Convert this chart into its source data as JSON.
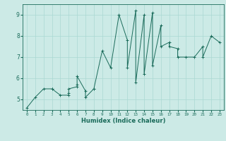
{
  "title": "",
  "xlabel": "Humidex (Indice chaleur)",
  "xlim": [
    -0.5,
    23.5
  ],
  "ylim": [
    4.5,
    9.5
  ],
  "xticks": [
    0,
    1,
    2,
    3,
    4,
    5,
    6,
    7,
    8,
    9,
    10,
    11,
    12,
    13,
    14,
    15,
    16,
    17,
    18,
    19,
    20,
    21,
    22,
    23
  ],
  "yticks": [
    5,
    6,
    7,
    8,
    9
  ],
  "bg_color": "#cceae6",
  "line_color": "#1a6b5a",
  "grid_color": "#aad8d3",
  "x": [
    0,
    1,
    2,
    3,
    3,
    4,
    5,
    5,
    5,
    6,
    6,
    6,
    7,
    7,
    8,
    8,
    9,
    10,
    11,
    12,
    12,
    13,
    13,
    14,
    14,
    15,
    15,
    16,
    16,
    17,
    17,
    18,
    18,
    19,
    20,
    21,
    21,
    22,
    23
  ],
  "y": [
    4.6,
    5.1,
    5.5,
    5.5,
    5.5,
    5.2,
    5.2,
    5.3,
    5.5,
    5.6,
    5.7,
    6.1,
    5.4,
    5.1,
    5.5,
    5.5,
    7.3,
    6.5,
    9.0,
    7.8,
    6.5,
    9.2,
    5.8,
    9.0,
    6.2,
    9.1,
    6.6,
    8.5,
    7.5,
    7.7,
    7.5,
    7.4,
    7.0,
    7.0,
    7.0,
    7.5,
    7.0,
    8.0,
    7.7
  ]
}
